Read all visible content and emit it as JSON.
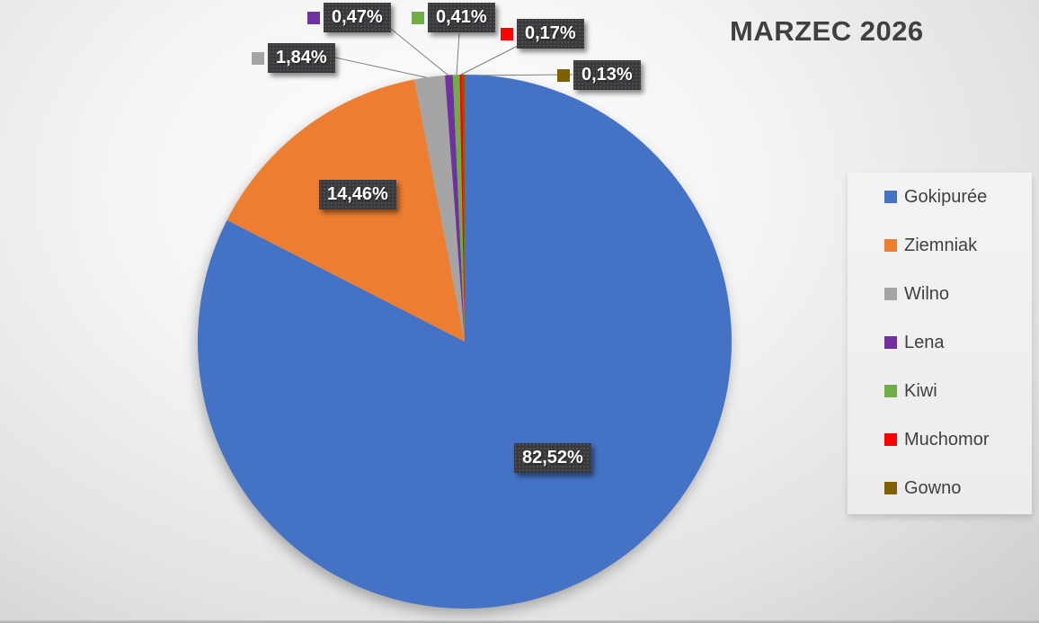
{
  "chart_data": {
    "type": "pie",
    "title": "MARZEC 2026",
    "legend_position": "right",
    "categories": [
      "Gokipurée",
      "Ziemniak",
      "Wilno",
      "Lena",
      "Kiwi",
      "Muchomor",
      "Gowno"
    ],
    "values": [
      82.52,
      14.46,
      1.84,
      0.47,
      0.41,
      0.17,
      0.13
    ],
    "slices": [
      {
        "name": "Gokipurée",
        "value": 82.52,
        "label": "82,52%",
        "color": "#4472C4"
      },
      {
        "name": "Ziemniak",
        "value": 14.46,
        "label": "14,46%",
        "color": "#ED7D31"
      },
      {
        "name": "Wilno",
        "value": 1.84,
        "label": "1,84%",
        "color": "#A5A5A5"
      },
      {
        "name": "Lena",
        "value": 0.47,
        "label": "0,47%",
        "color": "#7030A0"
      },
      {
        "name": "Kiwi",
        "value": 0.41,
        "label": "0,41%",
        "color": "#70AD47"
      },
      {
        "name": "Muchomor",
        "value": 0.17,
        "label": "0,17%",
        "color": "#FF0000"
      },
      {
        "name": "Gowno",
        "value": 0.13,
        "label": "0,13%",
        "color": "#7F6000"
      }
    ],
    "label_decimal_separator": ",",
    "data_label_style": {
      "box_color": "#3a3a3d",
      "text_color": "#ffffff"
    }
  }
}
